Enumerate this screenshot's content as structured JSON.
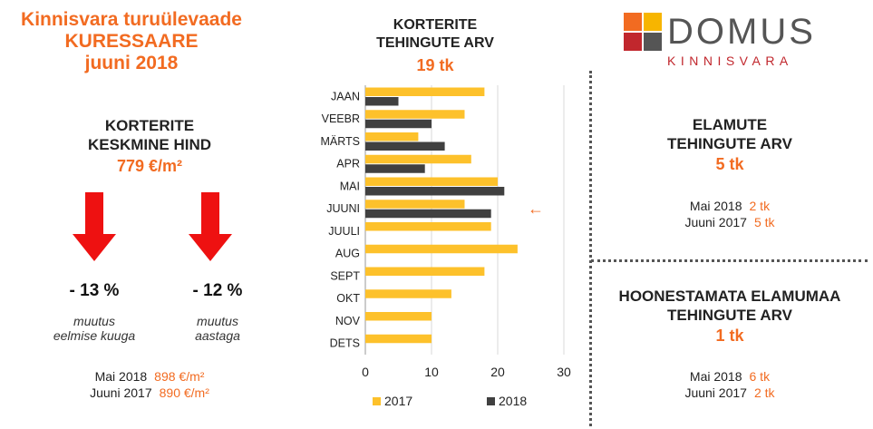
{
  "header": {
    "title_lines": [
      "Kinnisvara turuülevaade",
      "KURESSAARE",
      "juuni 2018"
    ]
  },
  "logo": {
    "brand": "DOMUS",
    "sub": "KINNISVARA",
    "tile_colors": [
      "#f26b21",
      "#f7b500",
      "#c1272d",
      "#555555"
    ]
  },
  "left_panel": {
    "heading_lines": [
      "KORTERITE",
      "KESKMINE HIND"
    ],
    "value": "779 €/m²",
    "arrow_color": "#ee1111",
    "changes": [
      {
        "pct": "- 13 %",
        "note_lines": [
          "muutus",
          "eelmise kuuga"
        ]
      },
      {
        "pct": "- 12 %",
        "note_lines": [
          "muutus",
          "aastaga"
        ]
      }
    ],
    "compare": [
      {
        "label": "Mai 2018",
        "value": "898 €/m²"
      },
      {
        "label": "Juuni 2017",
        "value": "890 €/m²"
      }
    ]
  },
  "center_panel": {
    "heading_lines": [
      "KORTERITE",
      "TEHINGUTE ARV"
    ],
    "value": "19 tk"
  },
  "right_top": {
    "heading_lines": [
      "ELAMUTE",
      "TEHINGUTE ARV"
    ],
    "value": "5 tk",
    "compare": [
      {
        "label": "Mai 2018",
        "value": "2 tk"
      },
      {
        "label": "Juuni 2017",
        "value": "5 tk"
      }
    ]
  },
  "right_bottom": {
    "heading_lines": [
      "HOONESTAMATA ELAMUMAA",
      "TEHINGUTE ARV"
    ],
    "value": "1 tk",
    "compare": [
      {
        "label": "Mai 2018",
        "value": "6 tk"
      },
      {
        "label": "Juuni 2017",
        "value": "2 tk"
      }
    ]
  },
  "chart_data": {
    "type": "bar",
    "orientation": "horizontal",
    "categories": [
      "JAAN",
      "VEEBR",
      "MÄRTS",
      "APR",
      "MAI",
      "JUUNI",
      "JUULI",
      "AUG",
      "SEPT",
      "OKT",
      "NOV",
      "DETS"
    ],
    "series": [
      {
        "name": "2017",
        "color": "#fdc12b",
        "values": [
          18,
          15,
          8,
          16,
          20,
          15,
          19,
          23,
          18,
          13,
          10,
          10
        ]
      },
      {
        "name": "2018",
        "color": "#404040",
        "values": [
          5,
          10,
          12,
          9,
          21,
          19,
          null,
          null,
          null,
          null,
          null,
          null
        ]
      }
    ],
    "xlim": [
      0,
      30
    ],
    "xticks": [
      "0",
      "10",
      "20",
      "30"
    ],
    "grid": true,
    "legend": "bottom",
    "annotation": {
      "category": "JUUNI",
      "symbol": "←",
      "color": "#f26b21"
    }
  }
}
